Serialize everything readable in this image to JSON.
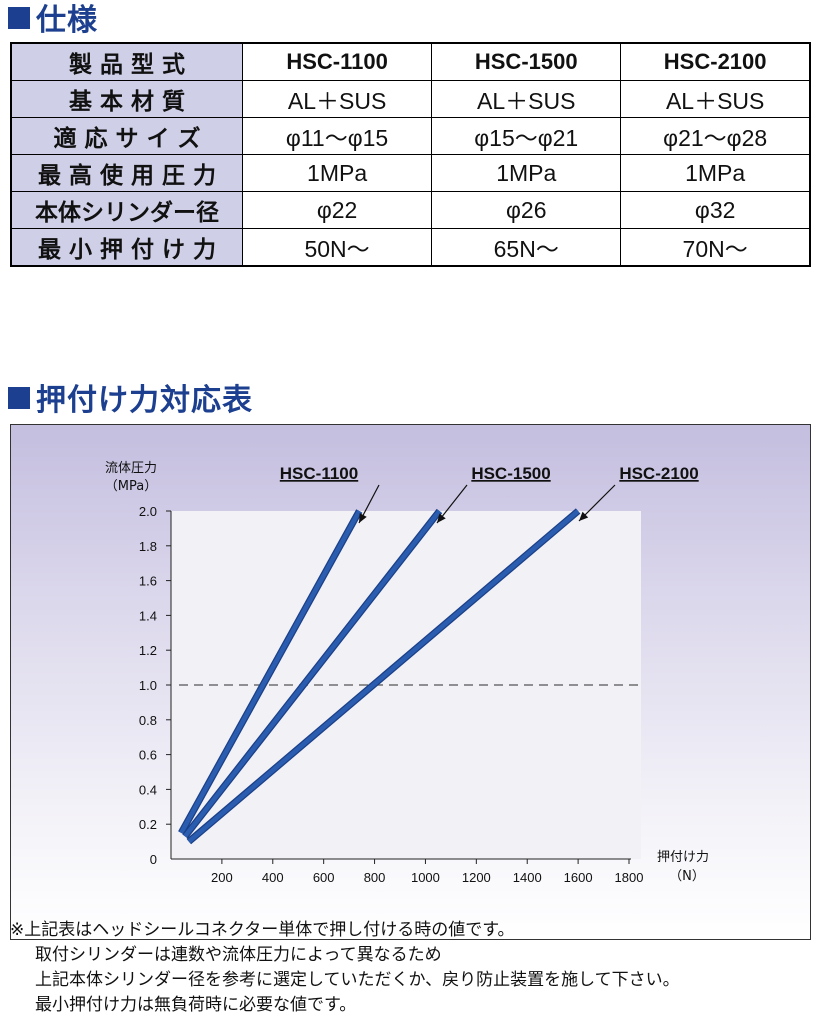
{
  "spec": {
    "title": "仕様",
    "rows": [
      {
        "label": "製 品 型 式",
        "values": [
          "HSC-1100",
          "HSC-1500",
          "HSC-2100"
        ]
      },
      {
        "label": "基 本 材 質",
        "values": [
          "AL＋SUS",
          "AL＋SUS",
          "AL＋SUS"
        ]
      },
      {
        "label": "適 応 サ イ ズ",
        "values": [
          "φ11〜φ15",
          "φ15〜φ21",
          "φ21〜φ28"
        ]
      },
      {
        "label": "最 高 使 用 圧 力",
        "values": [
          "1MPa",
          "1MPa",
          "1MPa"
        ]
      },
      {
        "label": "本体シリンダー径",
        "values": [
          "φ22",
          "φ26",
          "φ32"
        ]
      },
      {
        "label": "最 小 押 付 け 力",
        "values": [
          "50N〜",
          "65N〜",
          "70N〜"
        ]
      }
    ]
  },
  "chart_section": {
    "title": "押付け力対応表"
  },
  "chart_data": {
    "type": "line",
    "ylabel": "流体圧力",
    "yunit": "（MPa）",
    "xlabel": "押付け力",
    "xunit": "（N）",
    "xlim": [
      0,
      1800
    ],
    "ylim": [
      0,
      2.0
    ],
    "xticks": [
      "200",
      "400",
      "600",
      "800",
      "1000",
      "1200",
      "1400",
      "1600",
      "1800"
    ],
    "xtick_values": [
      200,
      400,
      600,
      800,
      1000,
      1200,
      1400,
      1600,
      1800
    ],
    "yticks": [
      "0",
      "0.2",
      "0.4",
      "0.6",
      "0.8",
      "1.0",
      "1.2",
      "1.4",
      "1.6",
      "1.8",
      "2.0"
    ],
    "ytick_values": [
      0,
      0.2,
      0.4,
      0.6,
      0.8,
      1.0,
      1.2,
      1.4,
      1.6,
      1.8,
      2.0
    ],
    "reference_line_y": 1.0,
    "line_color": "#2a5db0",
    "series": [
      {
        "name": "HSC-1100",
        "x": [
          40,
          740
        ],
        "y": [
          0.15,
          2.0
        ]
      },
      {
        "name": "HSC-1500",
        "x": [
          55,
          1055
        ],
        "y": [
          0.13,
          2.0
        ]
      },
      {
        "name": "HSC-2100",
        "x": [
          70,
          1600
        ],
        "y": [
          0.1,
          2.0
        ]
      }
    ]
  },
  "notes": [
    "※上記表はヘッドシールコネクター単体で押し付ける時の値です。",
    "取付シリンダーは連数や流体圧力によって異なるため",
    "上記本体シリンダー径を参考に選定していただくか、戻り防止装置を施して下さい。",
    "最小押付け力は無負荷時に必要な値です。"
  ]
}
